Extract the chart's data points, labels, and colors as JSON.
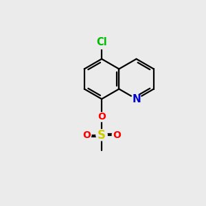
{
  "background_color": "#ebebeb",
  "atom_colors": {
    "N": "#0000cc",
    "O": "#ff0000",
    "S": "#cccc00",
    "Cl": "#00bb00"
  },
  "bond_color": "#000000",
  "bond_lw": 1.6,
  "font_size": 10,
  "figsize": [
    3.0,
    3.0
  ],
  "dpi": 100,
  "bl": 1.0
}
